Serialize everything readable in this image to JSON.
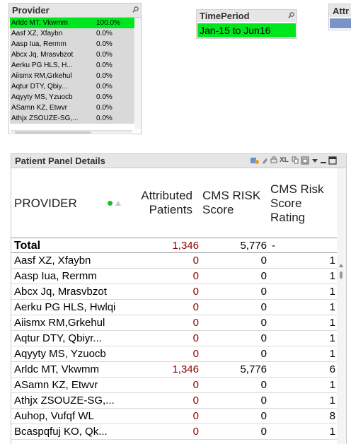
{
  "provider_box": {
    "title": "Provider",
    "items": [
      {
        "name": "Arldc MT, Vkwmm",
        "pct": "100.0%",
        "selected": true
      },
      {
        "name": "Aasf XZ, Xfaybn",
        "pct": "0.0%"
      },
      {
        "name": "Aasp Iua, Rermm",
        "pct": "0.0%"
      },
      {
        "name": "Abcx Jq, Mrasvbzot",
        "pct": "0.0%"
      },
      {
        "name": "Aerku PG HLS, H...",
        "pct": "0.0%"
      },
      {
        "name": "Aiismx RM,Grkehul",
        "pct": "0.0%"
      },
      {
        "name": "Aqtur DTY, Qbiy...",
        "pct": "0.0%"
      },
      {
        "name": "Aqyyty  MS, Yzuocb",
        "pct": "0.0%"
      },
      {
        "name": "ASamn KZ, Etwvr",
        "pct": "0.0%"
      },
      {
        "name": "Athjx ZSOUZE-SG,...",
        "pct": "0.0%"
      }
    ]
  },
  "time_period": {
    "title": "TimePeriod",
    "value": "Jan-15 to Jun16"
  },
  "attr_box": {
    "title": "Attr"
  },
  "panel": {
    "title": "Patient Panel Details",
    "toolbar_xl": "XL",
    "headers": {
      "provider": "PROVIDER",
      "attributed_1": "Attributed",
      "attributed_2": "Patients",
      "cms_1": "CMS RISK",
      "cms_2": "Score",
      "rating_1": "CMS Risk",
      "rating_2": "Score",
      "rating_3": "Rating"
    },
    "total": {
      "label": "Total",
      "attributed": "1,346",
      "cms": "5,776",
      "rating": "-"
    },
    "rows": [
      {
        "provider": "Aasf XZ, Xfaybn",
        "attributed": "0",
        "cms": "0",
        "rating": "1"
      },
      {
        "provider": "Aasp Iua, Rermm",
        "attributed": "0",
        "cms": "0",
        "rating": "1"
      },
      {
        "provider": "Abcx Jq, Mrasvbzot",
        "attributed": "0",
        "cms": "0",
        "rating": "1"
      },
      {
        "provider": "Aerku PG HLS, Hwlqi",
        "attributed": "0",
        "cms": "0",
        "rating": "1"
      },
      {
        "provider": "Aiismx RM,Grkehul",
        "attributed": "0",
        "cms": "0",
        "rating": "1"
      },
      {
        "provider": "Aqtur DTY, Qbiyr...",
        "attributed": "0",
        "cms": "0",
        "rating": "1"
      },
      {
        "provider": "Aqyyty  MS, Yzuocb",
        "attributed": "0",
        "cms": "0",
        "rating": "1"
      },
      {
        "provider": "Arldc MT, Vkwmm",
        "attributed": "1,346",
        "cms": "5,776",
        "rating": "6"
      },
      {
        "provider": "ASamn KZ, Etwvr",
        "attributed": "0",
        "cms": "0",
        "rating": "1"
      },
      {
        "provider": "Athjx ZSOUZE-SG,...",
        "attributed": "0",
        "cms": "0",
        "rating": "1"
      },
      {
        "provider": "Auhop, Vufqf WL",
        "attributed": "0",
        "cms": "0",
        "rating": "8"
      },
      {
        "provider": "Bcaspqfuj KO, Qk...",
        "attributed": "0",
        "cms": "0",
        "rating": "1"
      }
    ]
  },
  "colors": {
    "selected_green": "#00e61e",
    "attributed_red": "#8b0000"
  }
}
